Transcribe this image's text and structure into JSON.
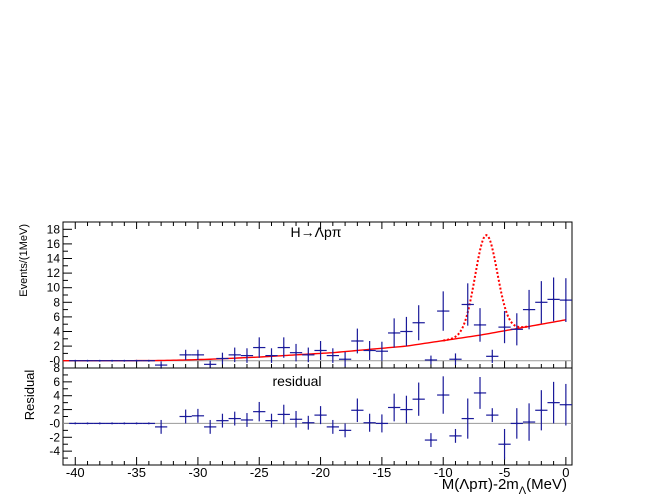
{
  "chart_data": [
    {
      "type": "scatter",
      "panel": "main",
      "title": "H→Λpπ",
      "ylabel": "Events/(1MeV)",
      "xlim": [
        -41,
        0.5
      ],
      "ylim": [
        -1,
        19
      ],
      "yticks": [
        "-0",
        "2",
        "4",
        "6",
        "8",
        "10",
        "12",
        "14",
        "16",
        "18"
      ],
      "grid": false,
      "series": [
        {
          "style": "data points with x and y error bars",
          "color": "#1a1a9a",
          "x": [
            -40,
            -39,
            -38,
            -37,
            -36,
            -35,
            -34,
            -33,
            -31,
            -30,
            -29,
            -28,
            -27,
            -26,
            -25,
            -24,
            -23,
            -22,
            -21,
            -20,
            -19,
            -18,
            -17,
            -16,
            -15,
            -14,
            -13,
            -12,
            -11,
            -10,
            -9,
            -8,
            -7,
            -6,
            -5,
            -4,
            -3,
            -2,
            -1,
            0
          ],
          "y": [
            0,
            0,
            0,
            0,
            0,
            0,
            0,
            -0.6,
            0.8,
            0.8,
            -0.5,
            0.3,
            0.8,
            0.7,
            1.8,
            0.7,
            1.8,
            1.1,
            0.8,
            1.4,
            0.7,
            0.2,
            2.7,
            1.4,
            1.3,
            3.8,
            4.0,
            5.2,
            0.1,
            6.8,
            0.2,
            7.7,
            4.9,
            0.6,
            4.6,
            4.3,
            7.0,
            8.0,
            8.4,
            8.3
          ],
          "yerr": [
            0,
            0,
            0,
            0,
            0,
            0,
            0,
            0.5,
            0.7,
            0.7,
            0.5,
            0.8,
            1.0,
            1.0,
            1.4,
            1.0,
            1.4,
            1.2,
            1.0,
            1.3,
            1.0,
            1.0,
            1.7,
            1.3,
            1.3,
            2.0,
            2.0,
            2.4,
            0.6,
            2.7,
            0.8,
            2.9,
            2.3,
            0.9,
            2.2,
            2.2,
            2.7,
            2.9,
            3.0,
            3.0
          ]
        },
        {
          "style": "solid red curve (background)",
          "color": "#ff0000",
          "x": [
            -41,
            -36,
            -33,
            -31,
            -29,
            -27,
            -25,
            -23,
            -21,
            -19,
            -17,
            -15,
            -13,
            -11,
            -9,
            -7,
            -5,
            -3,
            -1,
            0
          ],
          "y": [
            0,
            0,
            0.03,
            0.1,
            0.2,
            0.35,
            0.5,
            0.7,
            0.9,
            1.1,
            1.4,
            1.7,
            2.0,
            2.5,
            3.0,
            3.5,
            4.1,
            4.7,
            5.3,
            5.6
          ]
        },
        {
          "style": "dotted red curve (signal + background)",
          "color": "#ff0000",
          "peak_x": -6.5,
          "peak_y": 17.2,
          "width_sigma": 0.9
        }
      ]
    },
    {
      "type": "scatter",
      "panel": "residual",
      "title": "residual",
      "ylabel": "Residual",
      "xlabel": "M(Λpπ)-2mΛ(MeV)",
      "xlabel_parts": {
        "main": "M(Λpπ)-2m",
        "sub": "Λ",
        "tail": "(MeV)"
      },
      "xlim": [
        -41,
        0.5
      ],
      "xticks": [
        "-40",
        "-35",
        "-30",
        "-25",
        "-20",
        "-15",
        "-10",
        "-5",
        "0"
      ],
      "ylim": [
        -6,
        8
      ],
      "yticks": [
        "-4",
        "-2",
        "-0",
        "2",
        "4",
        "6",
        "8"
      ],
      "grid": false,
      "series": [
        {
          "style": "residual points with error bars",
          "color": "#1a1a9a",
          "x": [
            -40,
            -39,
            -38,
            -37,
            -36,
            -35,
            -34,
            -33,
            -31,
            -30,
            -29,
            -28,
            -27,
            -26,
            -25,
            -24,
            -23,
            -22,
            -21,
            -20,
            -19,
            -18,
            -17,
            -16,
            -15,
            -14,
            -13,
            -12,
            -11,
            -10,
            -9,
            -8,
            -7,
            -6,
            -5,
            -4,
            -3,
            -2,
            -1,
            0
          ],
          "y": [
            0,
            0,
            0,
            0,
            0,
            0,
            0,
            -0.5,
            1.0,
            1.1,
            -0.5,
            0.4,
            0.7,
            0.5,
            1.7,
            0.4,
            1.3,
            0.6,
            0.1,
            1.2,
            -0.5,
            -1.0,
            1.9,
            0.1,
            0,
            2.3,
            2.0,
            3.5,
            -2.4,
            4.1,
            -1.8,
            0.7,
            4.4,
            1.2,
            -3.0,
            0,
            0.2,
            1.9,
            3.0,
            2.7
          ]
        }
      ]
    }
  ]
}
